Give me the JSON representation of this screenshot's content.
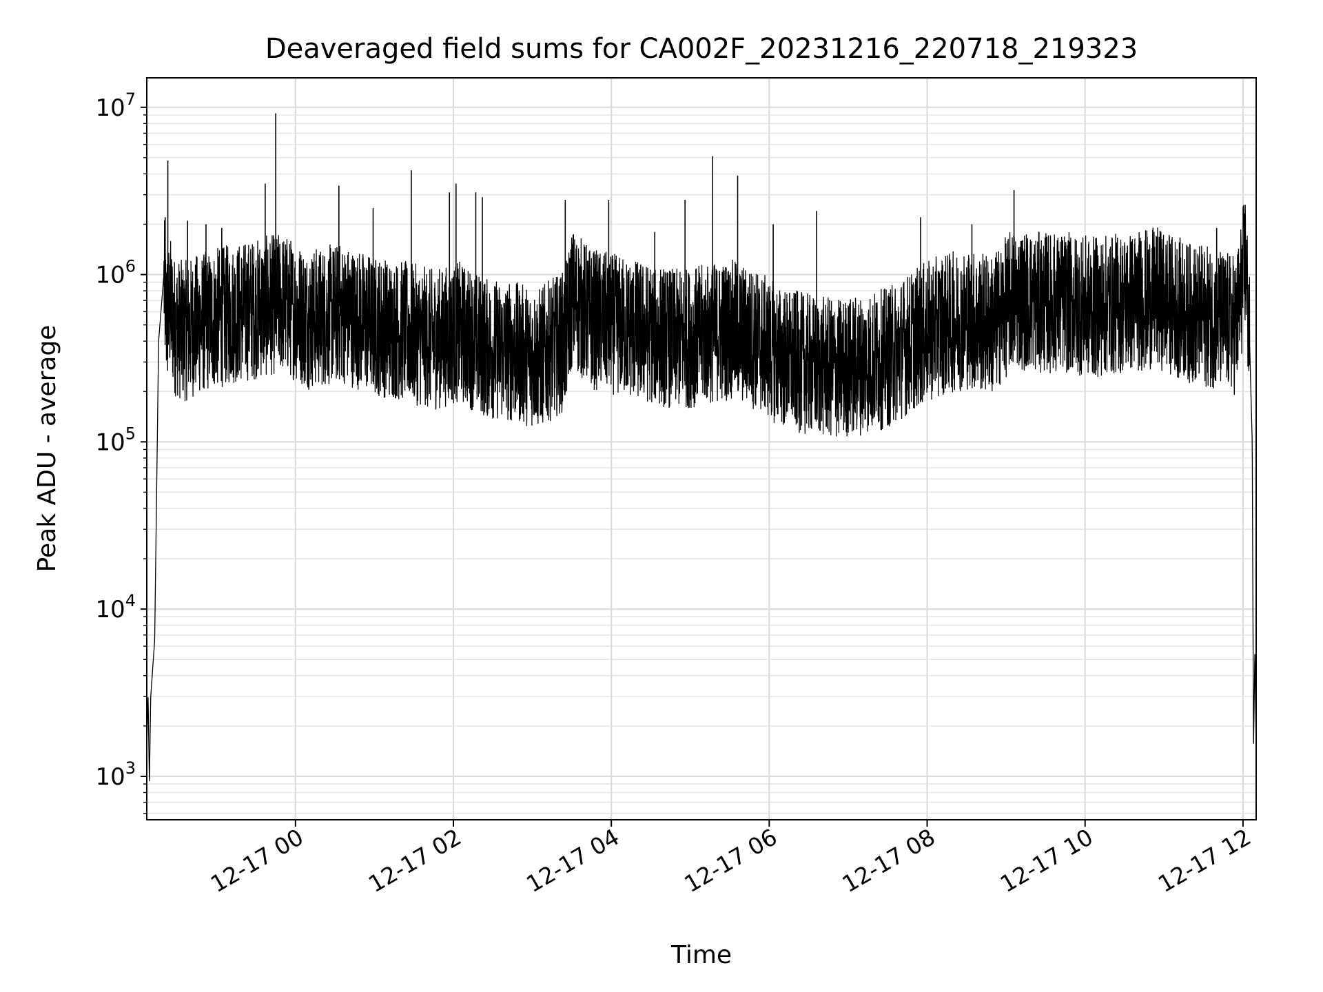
{
  "chart_data": {
    "type": "line",
    "title": "Deaveraged field sums for CA002F_20231216_220718_219323",
    "xlabel": "Time",
    "ylabel": "Peak ADU - average",
    "yscale": "log",
    "ylim": [
      550,
      15000000
    ],
    "xlim": [
      "2023-12-16 22:07",
      "2023-12-17 12:10"
    ],
    "grid": true,
    "line_color": "#000000",
    "x_ticks": [
      {
        "label": "12-17 00",
        "t": "2023-12-17 00:00"
      },
      {
        "label": "12-17 02",
        "t": "2023-12-17 02:00"
      },
      {
        "label": "12-17 04",
        "t": "2023-12-17 04:00"
      },
      {
        "label": "12-17 06",
        "t": "2023-12-17 06:00"
      },
      {
        "label": "12-17 08",
        "t": "2023-12-17 08:00"
      },
      {
        "label": "12-17 10",
        "t": "2023-12-17 10:00"
      },
      {
        "label": "12-17 12",
        "t": "2023-12-17 12:00"
      }
    ],
    "y_ticks": [
      {
        "value": 1000,
        "base": "10",
        "exp": "3"
      },
      {
        "value": 10000,
        "base": "10",
        "exp": "4"
      },
      {
        "value": 100000,
        "base": "10",
        "exp": "5"
      },
      {
        "value": 1000000,
        "base": "10",
        "exp": "6"
      },
      {
        "value": 10000000,
        "base": "10",
        "exp": "7"
      }
    ],
    "series": [
      {
        "t": [
          "2023-12-16 22:07",
          "2023-12-16 22:08",
          "2023-12-16 22:09",
          "2023-12-16 22:10",
          "2023-12-16 22:13",
          "2023-12-16 22:16",
          "2023-12-16 22:20",
          "2023-12-16 22:22",
          "2023-12-16 22:25",
          "2023-12-16 22:28",
          "2023-12-16 22:35",
          "2023-12-16 22:44",
          "2023-12-16 22:58",
          "2023-12-16 23:15",
          "2023-12-16 23:34",
          "2023-12-16 23:50",
          "2023-12-17 00:10",
          "2023-12-17 00:35",
          "2023-12-17 01:00",
          "2023-12-17 01:25",
          "2023-12-17 01:45",
          "2023-12-17 02:05",
          "2023-12-17 02:25",
          "2023-12-17 02:45",
          "2023-12-17 03:05",
          "2023-12-17 03:25",
          "2023-12-17 03:30",
          "2023-12-17 03:45",
          "2023-12-17 04:05",
          "2023-12-17 04:25",
          "2023-12-17 04:50",
          "2023-12-17 05:10",
          "2023-12-17 05:30",
          "2023-12-17 05:50",
          "2023-12-17 06:10",
          "2023-12-17 06:30",
          "2023-12-17 06:50",
          "2023-12-17 07:10",
          "2023-12-17 07:30",
          "2023-12-17 07:50",
          "2023-12-17 08:10",
          "2023-12-17 08:30",
          "2023-12-17 08:50",
          "2023-12-17 09:05",
          "2023-12-17 09:25",
          "2023-12-17 09:45",
          "2023-12-17 10:05",
          "2023-12-17 10:30",
          "2023-12-17 10:55",
          "2023-12-17 11:20",
          "2023-12-17 11:40",
          "2023-12-17 11:55",
          "2023-12-17 12:02",
          "2023-12-17 12:05",
          "2023-12-17 12:07",
          "2023-12-17 12:08",
          "2023-12-17 12:09",
          "2023-12-17 12:10"
        ],
        "values": [
          1500,
          3000,
          900,
          3000,
          6500,
          400000,
          1000000,
          600000,
          700000,
          550000,
          500000,
          550000,
          600000,
          650000,
          700000,
          750000,
          600000,
          650000,
          550000,
          500000,
          450000,
          500000,
          400000,
          380000,
          350000,
          450000,
          800000,
          600000,
          550000,
          500000,
          450000,
          480000,
          520000,
          450000,
          350000,
          320000,
          300000,
          320000,
          350000,
          450000,
          550000,
          600000,
          550000,
          800000,
          750000,
          750000,
          700000,
          750000,
          800000,
          650000,
          600000,
          550000,
          1400000,
          400000,
          100000,
          1500,
          5500,
          1500
        ]
      }
    ],
    "spikes": [
      {
        "t": "2023-12-16 22:23",
        "value": 4800000
      },
      {
        "t": "2023-12-16 22:21",
        "value": 2200000
      },
      {
        "t": "2023-12-16 22:38",
        "value": 2100000
      },
      {
        "t": "2023-12-16 22:52",
        "value": 2000000
      },
      {
        "t": "2023-12-16 23:04",
        "value": 1900000
      },
      {
        "t": "2023-12-16 23:37",
        "value": 3500000
      },
      {
        "t": "2023-12-16 23:45",
        "value": 9200000
      },
      {
        "t": "2023-12-17 00:33",
        "value": 3400000
      },
      {
        "t": "2023-12-17 00:59",
        "value": 2500000
      },
      {
        "t": "2023-12-17 01:28",
        "value": 4200000
      },
      {
        "t": "2023-12-17 01:57",
        "value": 3100000
      },
      {
        "t": "2023-12-17 02:02",
        "value": 3500000
      },
      {
        "t": "2023-12-17 02:17",
        "value": 3100000
      },
      {
        "t": "2023-12-17 02:22",
        "value": 2900000
      },
      {
        "t": "2023-12-17 03:25",
        "value": 2800000
      },
      {
        "t": "2023-12-17 03:58",
        "value": 2800000
      },
      {
        "t": "2023-12-17 04:33",
        "value": 1800000
      },
      {
        "t": "2023-12-17 04:56",
        "value": 2800000
      },
      {
        "t": "2023-12-17 05:17",
        "value": 5100000
      },
      {
        "t": "2023-12-17 05:36",
        "value": 3900000
      },
      {
        "t": "2023-12-17 06:03",
        "value": 2000000
      },
      {
        "t": "2023-12-17 06:36",
        "value": 2400000
      },
      {
        "t": "2023-12-17 07:55",
        "value": 2200000
      },
      {
        "t": "2023-12-17 08:34",
        "value": 2000000
      },
      {
        "t": "2023-12-17 09:06",
        "value": 3200000
      },
      {
        "t": "2023-12-17 11:40",
        "value": 1900000
      }
    ]
  }
}
